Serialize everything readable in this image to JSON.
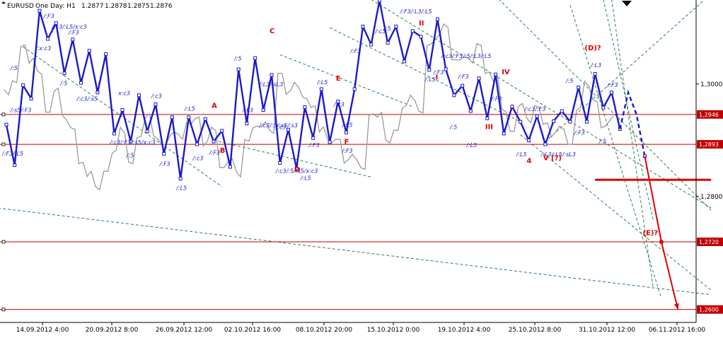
{
  "chart_data": {
    "type": "line",
    "header": {
      "symbol": "EURUSD",
      "mode": "One Day: H1",
      "ohlc": [
        "1.2877",
        "1.2878",
        "1.2875",
        "1.2876"
      ]
    },
    "x_ticks": [
      "14.09.2012 4:00",
      "20.09.2012 8:00",
      "26.09.2012 12:00",
      "02.10.2012 16:00",
      "08.10.2012 20:00",
      "15.10.2012 0:00",
      "19.10.2012 4:00",
      "25.10.2012 8:00",
      "31.10.2012 12:00",
      "06.11.2012 16:00"
    ],
    "y_ticks": [
      "1,3000",
      "1,2800"
    ],
    "y_range": [
      1.2577,
      1.3149
    ],
    "price_levels": [
      {
        "label": "1,2946",
        "value": 1.2946,
        "boxed": true
      },
      {
        "label": "1,2893",
        "value": 1.2893,
        "boxed": true
      },
      {
        "label": "1,2720",
        "value": 1.272,
        "boxed": true
      },
      {
        "label": "1,2600",
        "value": 1.26,
        "boxed": true
      }
    ],
    "price_series": [
      1.2985,
      1.3004,
      1.3068,
      1.3042,
      1.302,
      1.295,
      1.299,
      1.294,
      1.2921,
      1.286,
      1.2841,
      1.2815,
      1.2845,
      1.288,
      1.2918,
      1.286,
      1.2906,
      1.2944,
      1.2905,
      1.2893,
      1.2912,
      1.2906,
      1.293,
      1.294,
      1.2895,
      1.292,
      1.2852,
      1.2865,
      1.2839,
      1.29,
      1.2924,
      1.2929,
      1.2915,
      1.3019,
      1.2985,
      1.2998,
      1.2975,
      1.296,
      1.292,
      1.2898,
      1.2902,
      1.2863,
      1.287,
      1.285,
      1.2946,
      1.2946,
      1.2898,
      1.2918,
      1.296,
      1.2975,
      1.295,
      1.307,
      1.3084,
      1.3103,
      1.3043,
      1.3046,
      1.3041,
      1.307,
      1.302,
      1.301,
      1.2953,
      1.2916,
      1.2963,
      1.2935,
      1.296,
      1.293,
      1.2911,
      1.2922,
      1.2893,
      1.2956,
      1.3,
      1.297,
      1.2924,
      1.294
    ],
    "wave_points": [
      {
        "i": 0,
        "v": 1.2928
      },
      {
        "i": 1,
        "v": 1.2856
      },
      {
        "i": 2,
        "v": 1.2998
      },
      {
        "i": 3,
        "v": 1.2974
      },
      {
        "i": 4,
        "v": 1.313
      },
      {
        "i": 5,
        "v": 1.308
      },
      {
        "i": 6,
        "v": 1.3108
      },
      {
        "i": 7,
        "v": 1.3019
      },
      {
        "i": 8,
        "v": 1.3079
      },
      {
        "i": 9,
        "v": 1.3002
      },
      {
        "i": 10,
        "v": 1.3059
      },
      {
        "i": 11,
        "v": 1.2985
      },
      {
        "i": 12,
        "v": 1.3053
      },
      {
        "i": 13,
        "v": 1.2912
      },
      {
        "i": 14,
        "v": 1.2954
      },
      {
        "i": 15,
        "v": 1.2898
      },
      {
        "i": 16,
        "v": 1.298
      },
      {
        "i": 17,
        "v": 1.2916
      },
      {
        "i": 18,
        "v": 1.2964
      },
      {
        "i": 19,
        "v": 1.2876
      },
      {
        "i": 20,
        "v": 1.2941
      },
      {
        "i": 21,
        "v": 1.2832
      },
      {
        "i": 22,
        "v": 1.2941
      },
      {
        "i": 23,
        "v": 1.2893
      },
      {
        "i": 24,
        "v": 1.2938
      },
      {
        "i": 25,
        "v": 1.2898
      },
      {
        "i": 26,
        "v": 1.2917
      },
      {
        "i": 27,
        "v": 1.2853
      },
      {
        "i": 28,
        "v": 1.3026
      },
      {
        "i": 29,
        "v": 1.293
      },
      {
        "i": 30,
        "v": 1.3046
      },
      {
        "i": 31,
        "v": 1.2954
      },
      {
        "i": 32,
        "v": 1.3016
      },
      {
        "i": 33,
        "v": 1.286
      },
      {
        "i": 34,
        "v": 1.2919
      },
      {
        "i": 35,
        "v": 1.285
      },
      {
        "i": 36,
        "v": 1.2959
      },
      {
        "i": 37,
        "v": 1.2904
      },
      {
        "i": 38,
        "v": 1.2991
      },
      {
        "i": 39,
        "v": 1.2897
      },
      {
        "i": 40,
        "v": 1.2969
      },
      {
        "i": 41,
        "v": 1.2914
      },
      {
        "i": 42,
        "v": 1.2991
      },
      {
        "i": 43,
        "v": 1.3102
      },
      {
        "i": 44,
        "v": 1.307
      },
      {
        "i": 45,
        "v": 1.3148
      },
      {
        "i": 46,
        "v": 1.3073
      },
      {
        "i": 47,
        "v": 1.3102
      },
      {
        "i": 48,
        "v": 1.304
      },
      {
        "i": 49,
        "v": 1.3094
      },
      {
        "i": 50,
        "v": 1.3084
      },
      {
        "i": 51,
        "v": 1.3025
      },
      {
        "i": 52,
        "v": 1.3115
      },
      {
        "i": 53,
        "v": 1.3026
      },
      {
        "i": 54,
        "v": 1.298
      },
      {
        "i": 55,
        "v": 1.2997
      },
      {
        "i": 56,
        "v": 1.2952
      },
      {
        "i": 57,
        "v": 1.301
      },
      {
        "i": 58,
        "v": 1.2939
      },
      {
        "i": 59,
        "v": 1.3017
      },
      {
        "i": 60,
        "v": 1.2912
      },
      {
        "i": 61,
        "v": 1.296
      },
      {
        "i": 62,
        "v": 1.2933
      },
      {
        "i": 63,
        "v": 1.29
      },
      {
        "i": 64,
        "v": 1.2943
      },
      {
        "i": 65,
        "v": 1.2893
      },
      {
        "i": 66,
        "v": 1.2934
      },
      {
        "i": 67,
        "v": 1.2952
      },
      {
        "i": 68,
        "v": 1.2933
      },
      {
        "i": 69,
        "v": 1.2994
      },
      {
        "i": 70,
        "v": 1.2933
      },
      {
        "i": 71,
        "v": 1.3018
      },
      {
        "i": 72,
        "v": 1.2958
      },
      {
        "i": 73,
        "v": 1.2985
      },
      {
        "i": 74,
        "v": 1.292
      }
    ],
    "wave_labels": [
      {
        "text": "/:F3/:L5",
        "i": 0,
        "v": 1.2873
      },
      {
        "text": "/:s5/:F3",
        "i": 1,
        "v": 1.295
      },
      {
        "text": "/:5",
        "i": 1,
        "v": 1.3025
      },
      {
        "text": "/:x:c3",
        "i": 4,
        "v": 1.306
      },
      {
        "text": "/:F3",
        "i": 5,
        "v": 1.3117
      },
      {
        "text": "/:c3/:L5/x:c3",
        "i": 6,
        "v": 1.3098
      },
      {
        "text": "/:F3",
        "i": 8,
        "v": 1.3088
      },
      {
        "text": "/:5",
        "i": 7,
        "v": 1.2998
      },
      {
        "text": "/:c3/:s5",
        "i": 9,
        "v": 1.297
      },
      {
        "text": "/:c3/:F3/:s5/x:c3",
        "i": 13,
        "v": 1.2893
      },
      {
        "text": "x:c3",
        "i": 14,
        "v": 1.298
      },
      {
        "text": "/:5",
        "i": 15,
        "v": 1.287
      },
      {
        "text": "/:c3",
        "i": 18,
        "v": 1.2975
      },
      {
        "text": "/:F3",
        "i": 19,
        "v": 1.2855
      },
      {
        "text": "/:L5",
        "i": 21,
        "v": 1.2812
      },
      {
        "text": "/:L5",
        "i": 22,
        "v": 1.2953
      },
      {
        "text": "/:c3",
        "i": 23,
        "v": 1.2865
      },
      {
        "text": "/:F3",
        "i": 25,
        "v": 1.2875
      },
      {
        "text": "/:5",
        "i": 28,
        "v": 1.3042
      },
      {
        "text": "/:F3",
        "i": 29,
        "v": 1.295
      },
      {
        "text": "/:L3/:sL3",
        "i": 31,
        "v": 1.2996
      },
      {
        "text": "/:c3/:5/:s5/:s3",
        "i": 31,
        "v": 1.2923
      },
      {
        "text": "/:c3",
        "i": 33,
        "v": 1.292
      },
      {
        "text": "/:c3/:5/:s5/x:c3",
        "i": 33,
        "v": 1.2842
      },
      {
        "text": "/:L5",
        "i": 36,
        "v": 1.283
      },
      {
        "text": "/:L5",
        "i": 38,
        "v": 1.3
      },
      {
        "text": "/:F3",
        "i": 37,
        "v": 1.2888
      },
      {
        "text": "/:c3",
        "i": 40,
        "v": 1.296
      },
      {
        "text": "/:F3",
        "i": 41,
        "v": 1.2878
      },
      {
        "text": "/:L5",
        "i": 41,
        "v": 1.2924
      },
      {
        "text": "/:F3",
        "i": 42,
        "v": 1.3055
      },
      {
        "text": "/:c3",
        "i": 45,
        "v": 1.309
      },
      {
        "text": "/:5",
        "i": 46,
        "v": 1.3095
      },
      {
        "text": "/:F3/:L3/:L5",
        "i": 48,
        "v": 1.3125
      },
      {
        "text": "/:L5",
        "i": 51,
        "v": 1.3005
      },
      {
        "text": "/:c3/:F3/:5/:L3/:L5",
        "i": 53,
        "v": 1.3046
      },
      {
        "text": "/:F3",
        "i": 52,
        "v": 1.3017
      },
      {
        "text": "/:5",
        "i": 54,
        "v": 1.292
      },
      {
        "text": "/:F3",
        "i": 55,
        "v": 1.301
      },
      {
        "text": "/:L5",
        "i": 56,
        "v": 1.2888
      },
      {
        "text": "/:F3",
        "i": 59,
        "v": 1.297
      },
      {
        "text": "/:L5",
        "i": 62,
        "v": 1.2872
      },
      {
        "text": "/:c3/:F3",
        "i": 63,
        "v": 1.2952
      },
      {
        "text": "/:L3/:L5/:sL3",
        "i": 65,
        "v": 1.2872
      },
      {
        "text": "/:5",
        "i": 68,
        "v": 1.3002
      },
      {
        "text": "/:F3",
        "i": 69,
        "v": 1.291
      },
      {
        "text": "/:L3",
        "i": 71,
        "v": 1.303
      },
      {
        "text": "/:F3",
        "i": 73,
        "v": 1.2995
      },
      {
        "text": "/:5",
        "i": 72,
        "v": 1.2895
      }
    ],
    "red_labels": [
      {
        "text": "A",
        "i": 25,
        "v": 1.2958
      },
      {
        "text": "B",
        "i": 26,
        "v": 1.2878
      },
      {
        "text": "C",
        "i": 32,
        "v": 1.309
      },
      {
        "text": "D",
        "i": 35,
        "v": 1.2844
      },
      {
        "text": "E",
        "i": 40,
        "v": 1.3006
      },
      {
        "text": "F",
        "i": 41,
        "v": 1.2894
      },
      {
        "text": "I",
        "i": 52,
        "v": 1.3008
      },
      {
        "text": "II",
        "i": 50,
        "v": 1.3104
      },
      {
        "text": "III",
        "i": 58,
        "v": 1.292
      },
      {
        "text": "IV",
        "i": 60,
        "v": 1.3017
      },
      {
        "text": "4",
        "i": 63,
        "v": 1.286
      },
      {
        "text": "V (?)",
        "i": 65,
        "v": 1.2865
      },
      {
        "text": "(D)?",
        "i": 70,
        "v": 1.306
      },
      {
        "text": "(E)?",
        "i": 77,
        "v": 1.2732
      }
    ],
    "projection": {
      "dashed": [
        [
          74,
          1.292
        ],
        [
          75,
          1.2985
        ],
        [
          76,
          1.2946
        ],
        [
          77,
          1.2872
        ]
      ],
      "arrow": [
        [
          77,
          1.2872
        ],
        [
          79,
          1.272
        ],
        [
          81,
          1.26
        ]
      ]
    },
    "support_line": {
      "from": [
        71,
        1.283
      ],
      "to": [
        85,
        1.283
      ]
    },
    "trend_lines": [
      {
        "from": [
          -1,
          1.278
        ],
        "to": [
          85,
          1.2626
        ]
      },
      {
        "from": [
          2,
          1.3066
        ],
        "to": [
          26,
          1.2818
        ]
      },
      {
        "from": [
          33,
          1.3052
        ],
        "to": [
          49,
          1.296
        ]
      },
      {
        "from": [
          25,
          1.29
        ],
        "to": [
          44,
          1.2835
        ]
      },
      {
        "from": [
          39,
          1.31
        ],
        "to": [
          62,
          1.2933
        ]
      },
      {
        "from": [
          44,
          1.315
        ],
        "to": [
          85,
          1.278
        ]
      },
      {
        "from": [
          56,
          1.32
        ],
        "to": [
          85,
          1.2776
        ]
      },
      {
        "from": [
          62,
          1.291
        ],
        "to": [
          85,
          1.2634
        ]
      },
      {
        "from": [
          65,
          1.2898
        ],
        "to": [
          85,
          1.316
        ]
      },
      {
        "from": [
          68,
          1.314
        ],
        "to": [
          79,
          1.262
        ]
      },
      {
        "from": [
          72,
          1.315
        ],
        "to": [
          78,
          1.276
        ]
      },
      {
        "from": [
          73,
          1.315
        ],
        "to": [
          78,
          1.264
        ]
      }
    ]
  }
}
